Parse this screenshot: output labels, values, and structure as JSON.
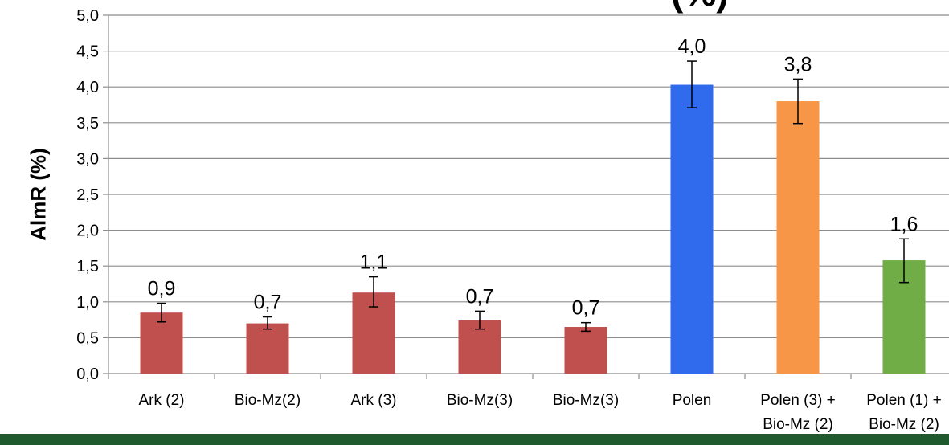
{
  "chart_data": {
    "type": "bar",
    "title_fragment": "(%)",
    "ylabel": "AlmR (%)",
    "xlabel": "",
    "ylim": [
      0,
      5.0
    ],
    "yticks": [
      "0,0",
      "0,5",
      "1,0",
      "1,5",
      "2,0",
      "2,5",
      "3,0",
      "3,5",
      "4,0",
      "4,5",
      "5,0"
    ],
    "grid": true,
    "categories": [
      [
        "Ark (2)"
      ],
      [
        "Bio-Mz(2)"
      ],
      [
        "Ark (3)"
      ],
      [
        "Bio-Mz(3)"
      ],
      [
        "Bio-Mz(3)"
      ],
      [
        "Polen"
      ],
      [
        "Polen (3) +",
        "Bio-Mz (2)"
      ],
      [
        "Polen (1) +",
        "Bio-Mz (2)"
      ]
    ],
    "values": [
      0.85,
      0.7,
      1.13,
      0.74,
      0.65,
      4.03,
      3.8,
      1.58
    ],
    "value_labels": [
      "0,9",
      "0,7",
      "1,1",
      "0,7",
      "0,7",
      "4,0",
      "3,8",
      "1,6"
    ],
    "error_low": [
      0.72,
      0.62,
      0.93,
      0.62,
      0.59,
      3.71,
      3.49,
      1.27
    ],
    "error_high": [
      0.98,
      0.79,
      1.35,
      0.87,
      0.71,
      4.36,
      4.11,
      1.88
    ],
    "colors": [
      "#c0504d",
      "#c0504d",
      "#c0504d",
      "#c0504d",
      "#c0504d",
      "#2f6bec",
      "#f79646",
      "#70ad47"
    ]
  },
  "footer": {
    "color": "#1f5a2e"
  }
}
